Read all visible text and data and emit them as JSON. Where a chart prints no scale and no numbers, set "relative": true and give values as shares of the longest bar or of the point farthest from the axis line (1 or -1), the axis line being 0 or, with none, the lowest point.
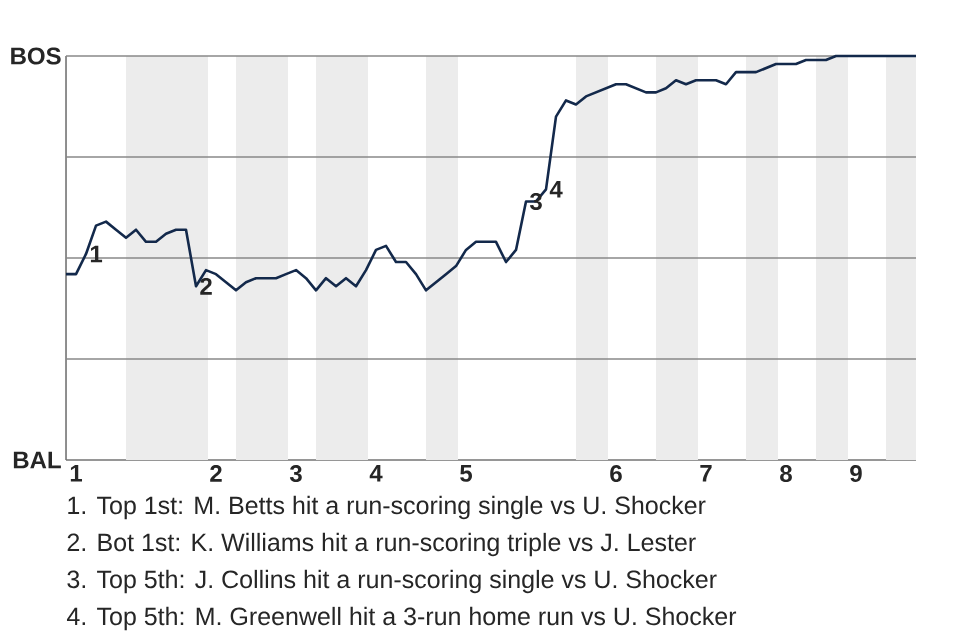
{
  "chart_data": {
    "type": "line",
    "relative": true,
    "categories": [
      null,
      "1",
      null,
      null,
      null,
      null,
      null,
      null,
      null,
      null,
      null,
      null,
      null,
      null,
      null,
      "2",
      null,
      null,
      null,
      null,
      null,
      null,
      null,
      "3",
      null,
      null,
      null,
      null,
      null,
      null,
      null,
      "4",
      null,
      null,
      null,
      null,
      null,
      null,
      null,
      null,
      "5",
      null,
      null,
      null,
      null,
      null,
      null,
      null,
      null,
      null,
      null,
      null,
      null,
      null,
      null,
      "6",
      null,
      null,
      null,
      null,
      null,
      null,
      null,
      null,
      "7",
      null,
      null,
      null,
      null,
      null,
      null,
      null,
      "8",
      null,
      null,
      null,
      null,
      null,
      null,
      "9",
      null,
      null,
      null,
      null,
      null,
      null
    ],
    "series": [
      {
        "color": "#13294b",
        "values": [
          0.46,
          0.46,
          0.51,
          0.58,
          0.59,
          0.57,
          0.55,
          0.57,
          0.54,
          0.54,
          0.56,
          0.57,
          0.57,
          0.43,
          0.47,
          0.46,
          0.44,
          0.42,
          0.44,
          0.45,
          0.45,
          0.45,
          0.46,
          0.47,
          0.45,
          0.42,
          0.45,
          0.43,
          0.45,
          0.43,
          0.47,
          0.52,
          0.53,
          0.49,
          0.49,
          0.46,
          0.42,
          0.44,
          0.46,
          0.48,
          0.52,
          0.54,
          0.54,
          0.54,
          0.49,
          0.52,
          0.64,
          0.64,
          0.67,
          0.85,
          0.89,
          0.88,
          0.9,
          0.91,
          0.92,
          0.93,
          0.93,
          0.92,
          0.91,
          0.91,
          0.92,
          0.94,
          0.93,
          0.94,
          0.94,
          0.94,
          0.93,
          0.96,
          0.96,
          0.96,
          0.97,
          0.98,
          0.98,
          0.98,
          0.99,
          0.99,
          0.99,
          1.0,
          1.0,
          1.0,
          1.0,
          1.0,
          1.0,
          1.0,
          1.0,
          1.0
        ]
      }
    ],
    "ref_lines": [
      {
        "axis": "y",
        "value": 0.25,
        "color": "#888888"
      },
      {
        "axis": "y",
        "value": 0.5,
        "color": "#888888"
      },
      {
        "axis": "y",
        "value": 0.75,
        "color": "#888888"
      },
      {
        "axis": "y",
        "value": 1,
        "color": "#888888"
      }
    ],
    "annotations": [
      {
        "text": "1",
        "y": 0.51
      },
      {
        "text": "2",
        "y": 0.43
      },
      {
        "text": "3",
        "y": 0.64
      },
      {
        "text": "4",
        "y": 0.67
      },
      "BOS",
      "BAL",
      "1. Top 1st: M. Betts hit a run-scoring single vs U. Shocker",
      "2. Bot 1st: K. Williams hit a run-scoring triple vs J. Lester",
      "3. Top 5th: J. Collins hit a run-scoring single vs U. Shocker",
      "4. Top 5th: M. Greenwell hit a 3-run home run vs U. Shocker"
    ]
  }
}
